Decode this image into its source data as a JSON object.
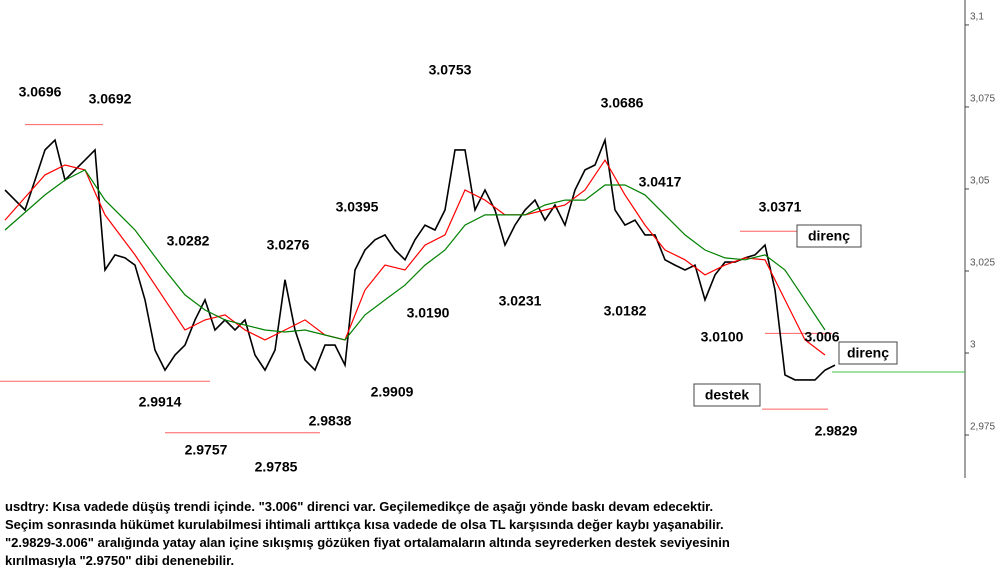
{
  "chart_data": {
    "type": "line",
    "ylim": [
      2.9619,
      3.1076
    ],
    "yticks": [
      {
        "value": 2.975,
        "label": "2,975"
      },
      3,
      {
        "value": 3.025,
        "label": "3,025"
      },
      {
        "value": 3.05,
        "label": "3,05"
      },
      {
        "value": 3.075,
        "label": "3,075"
      },
      {
        "value": 3.1,
        "label": "3,1"
      }
    ],
    "series": [
      {
        "color": "#000000",
        "values": [
          3.0497,
          3.0466,
          3.0436,
          3.0527,
          3.0619,
          3.0649,
          3.0527,
          3.0558,
          3.0588,
          3.0619,
          3.0253,
          3.0299,
          3.029,
          3.0268,
          3.0162,
          3.0009,
          2.9948,
          2.9994,
          3.0024,
          3.0101,
          3.0162,
          3.007,
          3.0101,
          3.007,
          3.0101,
          2.9994,
          2.9948,
          3.0009,
          3.0223,
          3.007,
          2.9979,
          2.9948,
          3.0024,
          3.0024,
          2.9963,
          3.0253,
          3.0314,
          3.0345,
          3.036,
          3.0314,
          3.0284,
          3.0345,
          3.039,
          3.0375,
          3.0436,
          3.0619,
          3.0619,
          3.0436,
          3.0497,
          3.0436,
          3.0329,
          3.039,
          3.0436,
          3.0466,
          3.0405,
          3.0451,
          3.039,
          3.0497,
          3.0558,
          3.0573,
          3.0649,
          3.0436,
          3.039,
          3.0405,
          3.036,
          3.036,
          3.0284,
          3.0268,
          3.0253,
          3.0268,
          3.0162,
          3.0238,
          3.0277,
          3.0277,
          3.029,
          3.0299,
          3.0329,
          3.0192,
          2.9933,
          2.9918,
          2.9918,
          2.9918,
          2.9948,
          2.9963
        ]
      },
      {
        "color": "#ff0000",
        "x": [
          0,
          4,
          6,
          8,
          10,
          13,
          16,
          18,
          20,
          22,
          24,
          26,
          28,
          30,
          32,
          34,
          36,
          38,
          40,
          42,
          44,
          46,
          48,
          50,
          52,
          54,
          56,
          58,
          60,
          62,
          64,
          66,
          68,
          70,
          72,
          74,
          76,
          78,
          80,
          82
        ],
        "values": [
          3.0405,
          3.0543,
          3.0573,
          3.0558,
          3.0421,
          3.0299,
          3.0162,
          3.007,
          3.0101,
          3.0116,
          3.007,
          3.004,
          3.007,
          3.0101,
          3.0055,
          3.004,
          3.0192,
          3.0268,
          3.0253,
          3.0329,
          3.036,
          3.0497,
          3.0466,
          3.0421,
          3.0421,
          3.0436,
          3.0451,
          3.0497,
          3.0588,
          3.0482,
          3.039,
          3.0314,
          3.0284,
          3.0238,
          3.0268,
          3.029,
          3.0284,
          3.0162,
          3.004,
          2.9994
        ]
      },
      {
        "color": "#008000",
        "x": [
          0,
          4,
          6,
          8,
          10,
          13,
          16,
          18,
          20,
          22,
          24,
          26,
          28,
          30,
          32,
          34,
          36,
          38,
          40,
          42,
          44,
          46,
          48,
          50,
          52,
          54,
          56,
          58,
          60,
          62,
          64,
          66,
          68,
          70,
          72,
          74,
          76,
          78,
          80,
          82
        ],
        "values": [
          3.0375,
          3.0482,
          3.0527,
          3.0558,
          3.0466,
          3.0375,
          3.0253,
          3.0177,
          3.0131,
          3.0101,
          3.0085,
          3.007,
          3.0064,
          3.007,
          3.0055,
          3.004,
          3.0116,
          3.0162,
          3.0207,
          3.0268,
          3.0314,
          3.039,
          3.0421,
          3.0421,
          3.0421,
          3.0451,
          3.0466,
          3.0466,
          3.0512,
          3.0512,
          3.0482,
          3.0421,
          3.036,
          3.0314,
          3.029,
          3.0284,
          3.0299,
          3.0253,
          3.0162,
          3.007
        ]
      }
    ],
    "levels": [
      {
        "value": 3.0696,
        "color": "#ff6060"
      },
      {
        "value": 2.9914,
        "color": "#ff6060"
      },
      {
        "value": 2.9757,
        "color": "#ff6060"
      },
      {
        "value": 3.0371,
        "color": "#ff6060"
      },
      {
        "value": 3.006,
        "color": "#ff6060"
      },
      {
        "value": 2.9829,
        "color": "#ff6060"
      },
      {
        "value": 2.9942,
        "color": "#40c040"
      }
    ],
    "annotations": [
      3.0696,
      3.0692,
      3.0753,
      3.0686,
      3.0282,
      3.0276,
      3.0395,
      3.0417,
      3.0371,
      {
        "value": 3.019,
        "label": "3.0190"
      },
      3.0231,
      3.0182,
      {
        "value": 3.01,
        "label": "3.0100"
      },
      3.006,
      2.9914,
      2.9909,
      2.9838,
      2.9757,
      2.9785,
      2.9829
    ],
    "boxes": [
      "direnç",
      "direnç",
      "destek"
    ],
    "caption": [
      "usdtry: Kısa vadede düşüş trendi içinde. \"3.006\" direnci var. Geçilemedikçe de aşağı yönde baskı devam edecektir.",
      "Seçim sonrasında hükümet kurulabilmesi ihtimali arttıkça kısa vadede de olsa TL karşısında değer kaybı yaşanabilir.",
      "\"2.9829-3.006\" aralığında yatay alan içine sıkışmış gözüken fiyat ortalamaların altında seyrederken destek seviyesinin",
      "kırılmasıyla \"2.9750\" dibi denenebilir."
    ]
  }
}
